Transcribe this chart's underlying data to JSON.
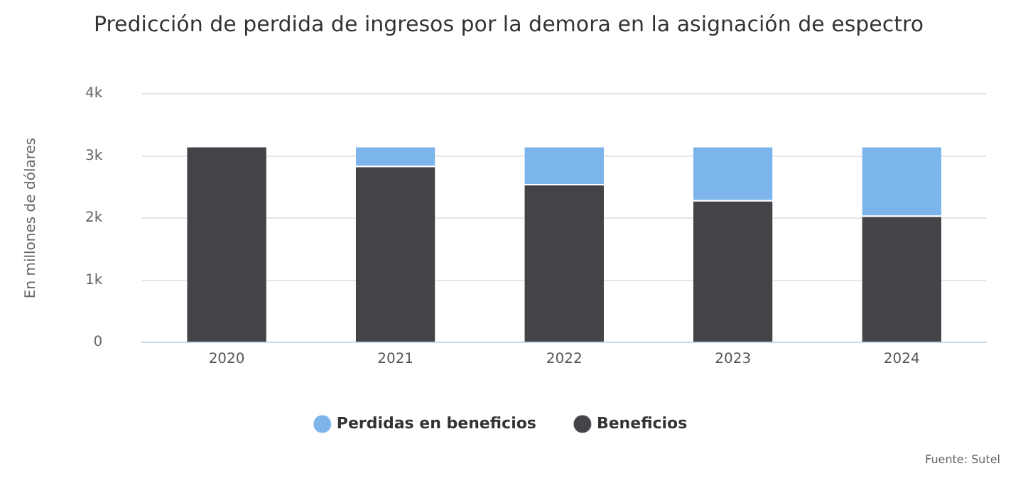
{
  "chart_data": {
    "type": "bar",
    "title": "Predicción de perdida de ingresos por la demora en la asignación de espectro",
    "ylabel": "En millones de dólares",
    "categories": [
      "2020",
      "2021",
      "2022",
      "2023",
      "2024"
    ],
    "stacked": true,
    "series": [
      {
        "name": "Beneficios",
        "color": "#434348",
        "values": [
          3160,
          2840,
          2550,
          2290,
          2040
        ]
      },
      {
        "name": "Perdidas en beneficios",
        "color": "#7cb5ec",
        "values": [
          0,
          320,
          610,
          870,
          1120
        ]
      }
    ],
    "ylim": [
      0,
      4000
    ],
    "yticks": [
      {
        "value": 0,
        "label": "0"
      },
      {
        "value": 1000,
        "label": "1k"
      },
      {
        "value": 2000,
        "label": "2k"
      },
      {
        "value": 3000,
        "label": "3k"
      },
      {
        "value": 4000,
        "label": "4k"
      }
    ],
    "grid": "y",
    "legend": "bottom",
    "annotations": [
      "Fuente: Sutel"
    ]
  }
}
